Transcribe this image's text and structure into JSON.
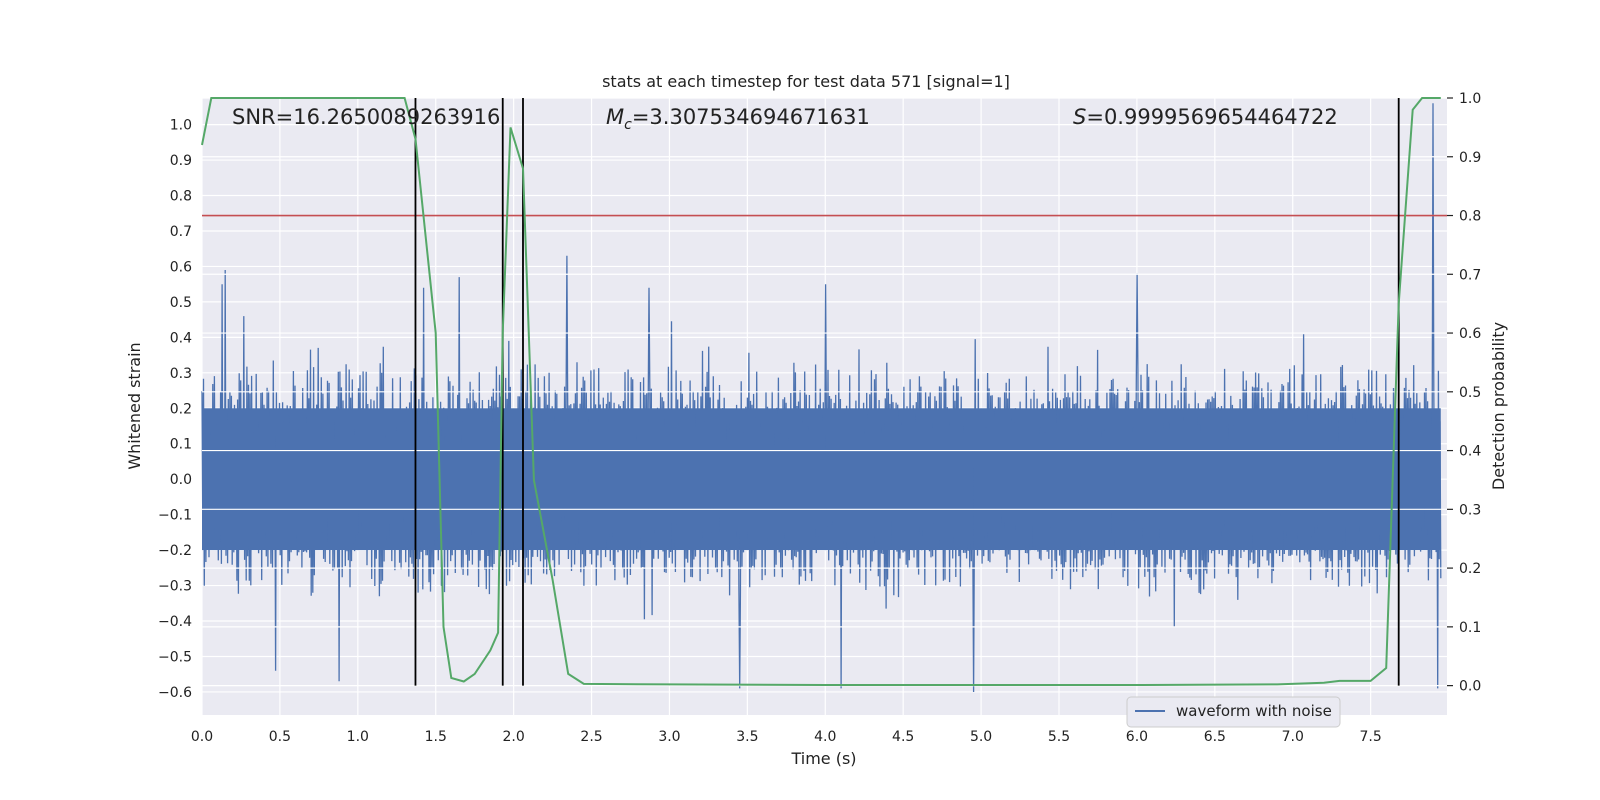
{
  "chart_data": {
    "type": "line",
    "title": "stats at each timestep for test data 571 [signal=1]",
    "xlabel": "Time (s)",
    "ylabel": "Whitened strain",
    "y2label": "Detection probability",
    "xlim": [
      0.0,
      7.99
    ],
    "ylim": [
      -0.665,
      1.075
    ],
    "y2lim": [
      -0.05,
      1.0
    ],
    "x_ticks": [
      "0.0",
      "0.5",
      "1.0",
      "1.5",
      "2.0",
      "2.5",
      "3.0",
      "3.5",
      "4.0",
      "4.5",
      "5.0",
      "5.5",
      "6.0",
      "6.5",
      "7.0",
      "7.5"
    ],
    "x_tick_values": [
      0.0,
      0.5,
      1.0,
      1.5,
      2.0,
      2.5,
      3.0,
      3.5,
      4.0,
      4.5,
      5.0,
      5.5,
      6.0,
      6.5,
      7.0,
      7.5
    ],
    "y_ticks": [
      "−0.6",
      "−0.5",
      "−0.4",
      "−0.3",
      "−0.2",
      "−0.1",
      "0.0",
      "0.1",
      "0.2",
      "0.3",
      "0.4",
      "0.5",
      "0.6",
      "0.7",
      "0.8",
      "0.9",
      "1.0"
    ],
    "y_tick_values": [
      -0.6,
      -0.5,
      -0.4,
      -0.3,
      -0.2,
      -0.1,
      0.0,
      0.1,
      0.2,
      0.3,
      0.4,
      0.5,
      0.6,
      0.7,
      0.8,
      0.9,
      1.0
    ],
    "y2_ticks": [
      "0.0",
      "0.1",
      "0.2",
      "0.3",
      "0.4",
      "0.5",
      "0.6",
      "0.7",
      "0.8",
      "0.9",
      "1.0"
    ],
    "y2_tick_values": [
      0.0,
      0.1,
      0.2,
      0.3,
      0.4,
      0.5,
      0.6,
      0.7,
      0.8,
      0.9,
      1.0
    ],
    "annotations": {
      "snr": "SNR=16.2650089263916",
      "mc_symbol": "M",
      "mc_sub": "c",
      "mc_value": "=3.307534694671631",
      "s_symbol": "S",
      "s_value": "=0.9999569654464722"
    },
    "legend": {
      "label": "waveform with noise",
      "position": "lower-right"
    },
    "threshold_line": {
      "y2": 0.8,
      "color": "#c44e52"
    },
    "vertical_markers": [
      1.37,
      1.93,
      2.06,
      7.68
    ],
    "waveform": {
      "color": "#4c72b0",
      "n_samples": 1600,
      "base_amplitude": 0.28,
      "peaks": [
        {
          "x": 0.13,
          "y": 0.55
        },
        {
          "x": 0.15,
          "y": 0.59
        },
        {
          "x": 0.27,
          "y": 0.46
        },
        {
          "x": 1.42,
          "y": 0.54
        },
        {
          "x": 1.65,
          "y": 0.57
        },
        {
          "x": 2.34,
          "y": 0.63
        },
        {
          "x": 2.87,
          "y": 0.54
        },
        {
          "x": 4.0,
          "y": 0.55
        },
        {
          "x": 6.0,
          "y": 0.58
        },
        {
          "x": 7.9,
          "y": 1.06
        },
        {
          "x": 0.47,
          "y": -0.54
        },
        {
          "x": 0.88,
          "y": -0.57
        },
        {
          "x": 3.45,
          "y": -0.59
        },
        {
          "x": 4.1,
          "y": -0.59
        },
        {
          "x": 4.95,
          "y": -0.6
        },
        {
          "x": 7.93,
          "y": -0.59
        }
      ]
    },
    "detection_probability": {
      "color": "#55a868",
      "x": [
        0.0,
        0.06,
        0.5,
        1.0,
        1.3,
        1.37,
        1.5,
        1.55,
        1.6,
        1.68,
        1.75,
        1.85,
        1.9,
        1.93,
        1.98,
        2.06,
        2.13,
        2.25,
        2.35,
        2.45,
        3.0,
        4.0,
        5.0,
        6.0,
        6.9,
        7.2,
        7.3,
        7.5,
        7.6,
        7.68,
        7.77,
        7.83,
        7.95
      ],
      "y": [
        0.92,
        1.0,
        1.0,
        1.0,
        1.0,
        0.93,
        0.6,
        0.1,
        0.013,
        0.007,
        0.02,
        0.06,
        0.09,
        0.6,
        0.95,
        0.88,
        0.35,
        0.18,
        0.02,
        0.003,
        0.002,
        0.001,
        0.001,
        0.001,
        0.002,
        0.005,
        0.008,
        0.008,
        0.03,
        0.65,
        0.98,
        1.0,
        1.0
      ]
    }
  }
}
